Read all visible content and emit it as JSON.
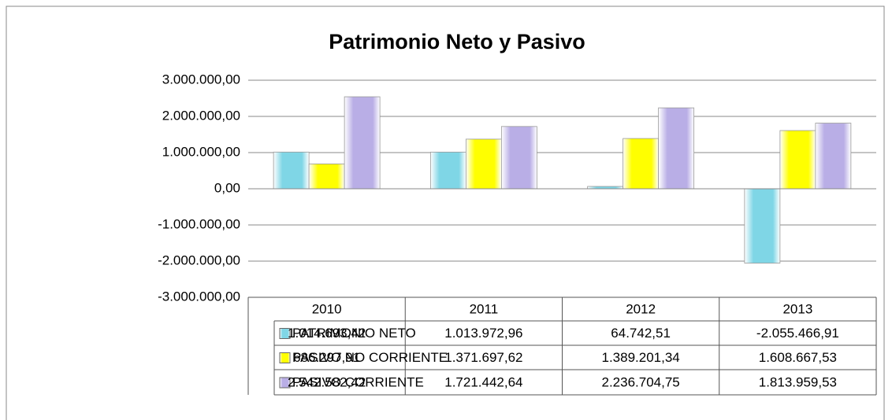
{
  "chart_data": {
    "type": "bar",
    "title": "Patrimonio Neto y Pasivo",
    "categories": [
      "2010",
      "2011",
      "2012",
      "2013"
    ],
    "series": [
      {
        "name": "PATRIMONIO NETO",
        "color": "#7fd6e6",
        "values": [
          1014693.42,
          1013972.96,
          64742.51,
          -2055466.91
        ],
        "value_labels": [
          "1.014.693,42",
          "1.013.972,96",
          "64.742,51",
          "-2.055.466,91"
        ]
      },
      {
        "name": "PASIVO NO CORRIENTE",
        "color": "#ffff00",
        "values": [
          686297.91,
          1371697.62,
          1389201.34,
          1608667.53
        ],
        "value_labels": [
          "686.297,91",
          "1.371.697,62",
          "1.389.201,34",
          "1.608.667,53"
        ]
      },
      {
        "name": "PASIVO CORRIENTE",
        "color": "#b9aee6",
        "values": [
          2542582.42,
          1721442.64,
          2236704.75,
          1813959.53
        ],
        "value_labels": [
          "2.542.582,42",
          "1.721.442,64",
          "2.236.704,75",
          "1.813.959,53"
        ]
      }
    ],
    "ylim": [
      -3000000,
      3000000
    ],
    "yticks": [
      {
        "value": 3000000,
        "label": "3.000.000,00"
      },
      {
        "value": 2000000,
        "label": "2.000.000,00"
      },
      {
        "value": 1000000,
        "label": "1.000.000,00"
      },
      {
        "value": 0,
        "label": "0,00"
      },
      {
        "value": -1000000,
        "label": "-1.000.000,00"
      },
      {
        "value": -2000000,
        "label": "-2.000.000,00"
      },
      {
        "value": -3000000,
        "label": "-3.000.000,00"
      }
    ],
    "grid": true
  }
}
